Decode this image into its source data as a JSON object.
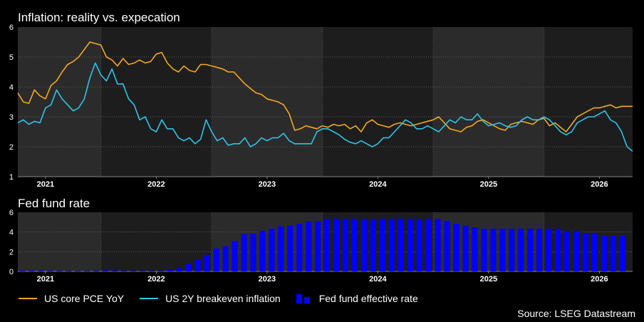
{
  "chart_data": [
    {
      "type": "line",
      "title": "Inflation: reality vs. expecation",
      "ylim": [
        1,
        6
      ],
      "yticks": [
        "1",
        "2",
        "3",
        "4",
        "5",
        "6"
      ],
      "xlim": [
        2020.75,
        2026.3
      ],
      "xticks": [
        {
          "label": "2021",
          "x": 2021
        },
        {
          "label": "2022",
          "x": 2022
        },
        {
          "label": "2023",
          "x": 2023
        },
        {
          "label": "2024",
          "x": 2024
        },
        {
          "label": "2025",
          "x": 2025
        },
        {
          "label": "2026",
          "x": 2026
        }
      ],
      "grid": true,
      "series": [
        {
          "name": "US core PCE YoY",
          "color": "#f5a623",
          "x": [
            2020.75,
            2020.8,
            2020.85,
            2020.9,
            2020.95,
            2021.0,
            2021.05,
            2021.1,
            2021.15,
            2021.2,
            2021.25,
            2021.3,
            2021.35,
            2021.4,
            2021.45,
            2021.5,
            2021.55,
            2021.6,
            2021.65,
            2021.7,
            2021.75,
            2021.8,
            2021.85,
            2021.9,
            2021.95,
            2022.0,
            2022.05,
            2022.1,
            2022.15,
            2022.2,
            2022.25,
            2022.3,
            2022.35,
            2022.4,
            2022.45,
            2022.5,
            2022.55,
            2022.6,
            2022.65,
            2022.7,
            2022.75,
            2022.8,
            2022.85,
            2022.9,
            2022.95,
            2023.0,
            2023.05,
            2023.1,
            2023.15,
            2023.2,
            2023.25,
            2023.3,
            2023.35,
            2023.4,
            2023.45,
            2023.5,
            2023.55,
            2023.6,
            2023.65,
            2023.7,
            2023.75,
            2023.8,
            2023.85,
            2023.9,
            2023.95,
            2024.0,
            2024.05,
            2024.1,
            2024.15,
            2024.2,
            2024.25,
            2024.3,
            2024.35,
            2024.4,
            2024.45,
            2024.5,
            2024.55,
            2024.6,
            2024.65,
            2024.7,
            2024.75,
            2024.8,
            2024.85,
            2024.9,
            2024.95,
            2025.0,
            2025.05,
            2025.1,
            2025.15,
            2025.2,
            2025.25,
            2025.3,
            2025.35,
            2025.4,
            2025.45,
            2025.5,
            2025.55,
            2025.6,
            2025.65,
            2025.7,
            2025.75,
            2025.8,
            2025.85,
            2025.9,
            2025.95,
            2026.0,
            2026.05,
            2026.1,
            2026.15,
            2026.2,
            2026.25,
            2026.3
          ],
          "values": [
            3.8,
            3.5,
            3.45,
            3.9,
            3.7,
            3.6,
            4.05,
            4.2,
            4.5,
            4.75,
            4.85,
            5.0,
            5.25,
            5.5,
            5.45,
            5.4,
            5.0,
            4.9,
            4.7,
            4.95,
            4.75,
            4.8,
            4.9,
            4.8,
            4.85,
            5.1,
            5.15,
            4.8,
            4.6,
            4.5,
            4.7,
            4.55,
            4.5,
            4.75,
            4.75,
            4.7,
            4.65,
            4.6,
            4.5,
            4.5,
            4.3,
            4.1,
            3.95,
            3.8,
            3.75,
            3.6,
            3.55,
            3.5,
            3.4,
            3.1,
            2.55,
            2.6,
            2.7,
            2.65,
            2.6,
            2.7,
            2.65,
            2.75,
            2.7,
            2.75,
            2.6,
            2.7,
            2.5,
            2.8,
            2.9,
            2.75,
            2.7,
            2.65,
            2.75,
            2.8,
            2.75,
            2.7,
            2.75,
            2.8,
            2.85,
            2.9,
            3.0,
            2.8,
            2.6,
            2.55,
            2.5,
            2.65,
            2.7,
            2.85,
            2.9,
            2.8,
            2.7,
            2.6,
            2.55,
            2.75,
            2.8,
            2.85,
            2.8,
            2.75,
            2.9,
            2.95,
            2.7,
            2.8,
            2.65,
            2.5,
            2.75,
            3.0,
            3.1,
            3.2,
            3.3,
            3.3,
            3.35,
            3.4,
            3.3,
            3.35,
            3.35,
            3.35
          ]
        },
        {
          "name": "US 2Y breakeven inflation",
          "color": "#2ec4e8",
          "x": [
            2020.75,
            2020.8,
            2020.85,
            2020.9,
            2020.95,
            2021.0,
            2021.05,
            2021.1,
            2021.15,
            2021.2,
            2021.25,
            2021.3,
            2021.35,
            2021.4,
            2021.45,
            2021.5,
            2021.55,
            2021.6,
            2021.65,
            2021.7,
            2021.75,
            2021.8,
            2021.85,
            2021.9,
            2021.95,
            2022.0,
            2022.05,
            2022.1,
            2022.15,
            2022.2,
            2022.25,
            2022.3,
            2022.35,
            2022.4,
            2022.45,
            2022.5,
            2022.55,
            2022.6,
            2022.65,
            2022.7,
            2022.75,
            2022.8,
            2022.85,
            2022.9,
            2022.95,
            2023.0,
            2023.05,
            2023.1,
            2023.15,
            2023.2,
            2023.25,
            2023.3,
            2023.35,
            2023.4,
            2023.45,
            2023.5,
            2023.55,
            2023.6,
            2023.65,
            2023.7,
            2023.75,
            2023.8,
            2023.85,
            2023.9,
            2023.95,
            2024.0,
            2024.05,
            2024.1,
            2024.15,
            2024.2,
            2024.25,
            2024.3,
            2024.35,
            2024.4,
            2024.45,
            2024.5,
            2024.55,
            2024.6,
            2024.65,
            2024.7,
            2024.75,
            2024.8,
            2024.85,
            2024.9,
            2024.95,
            2025.0,
            2025.05,
            2025.1,
            2025.15,
            2025.2,
            2025.25,
            2025.3,
            2025.35,
            2025.4,
            2025.45,
            2025.5,
            2025.55,
            2025.6,
            2025.65,
            2025.7,
            2025.75,
            2025.8,
            2025.85,
            2025.9,
            2025.95,
            2026.0,
            2026.05,
            2026.1,
            2026.15,
            2026.2,
            2026.25,
            2026.3
          ],
          "values": [
            2.8,
            2.9,
            2.75,
            2.85,
            2.8,
            3.3,
            3.4,
            3.9,
            3.6,
            3.4,
            3.2,
            3.3,
            3.6,
            4.3,
            4.8,
            4.4,
            4.2,
            4.6,
            4.1,
            4.1,
            3.6,
            3.4,
            2.9,
            3.0,
            2.6,
            2.5,
            2.9,
            2.6,
            2.6,
            2.3,
            2.2,
            2.3,
            2.1,
            2.25,
            2.9,
            2.5,
            2.2,
            2.3,
            2.05,
            2.1,
            2.1,
            2.3,
            2.0,
            2.1,
            2.3,
            2.2,
            2.3,
            2.3,
            2.45,
            2.2,
            2.1,
            2.1,
            2.1,
            2.1,
            2.5,
            2.6,
            2.6,
            2.5,
            2.4,
            2.25,
            2.15,
            2.1,
            2.2,
            2.1,
            2.0,
            2.1,
            2.3,
            2.3,
            2.5,
            2.7,
            2.9,
            2.8,
            2.6,
            2.6,
            2.7,
            2.6,
            2.5,
            2.7,
            2.9,
            2.8,
            3.0,
            2.9,
            2.9,
            3.1,
            2.85,
            2.7,
            2.75,
            2.8,
            2.7,
            2.65,
            2.7,
            2.9,
            3.0,
            2.9,
            2.9,
            3.0,
            2.9,
            2.7,
            2.5,
            2.4,
            2.5,
            2.8,
            2.9,
            3.0,
            3.0,
            3.1,
            3.2,
            2.9,
            2.8,
            2.5,
            2.0,
            1.85
          ]
        }
      ]
    },
    {
      "type": "bar",
      "title": "Fed fund rate",
      "ylim": [
        0,
        6
      ],
      "yticks": [
        "0",
        "2",
        "4",
        "6"
      ],
      "xlim": [
        2020.75,
        2026.3
      ],
      "xticks": [
        {
          "label": "2021",
          "x": 2021
        },
        {
          "label": "2022",
          "x": 2022
        },
        {
          "label": "2023",
          "x": 2023
        },
        {
          "label": "2024",
          "x": 2024
        },
        {
          "label": "2025",
          "x": 2025
        },
        {
          "label": "2026",
          "x": 2026
        }
      ],
      "grid": true,
      "series": [
        {
          "name": "Fed fund effective rate",
          "color": "#0000ff",
          "x": [
            2020.792,
            2020.875,
            2020.958,
            2021.042,
            2021.125,
            2021.208,
            2021.292,
            2021.375,
            2021.458,
            2021.542,
            2021.625,
            2021.708,
            2021.792,
            2021.875,
            2021.958,
            2022.042,
            2022.125,
            2022.208,
            2022.292,
            2022.375,
            2022.458,
            2022.542,
            2022.625,
            2022.708,
            2022.792,
            2022.875,
            2022.958,
            2023.042,
            2023.125,
            2023.208,
            2023.292,
            2023.375,
            2023.458,
            2023.542,
            2023.625,
            2023.708,
            2023.792,
            2023.875,
            2023.958,
            2024.042,
            2024.125,
            2024.208,
            2024.292,
            2024.375,
            2024.458,
            2024.542,
            2024.625,
            2024.708,
            2024.792,
            2024.875,
            2024.958,
            2025.042,
            2025.125,
            2025.208,
            2025.292,
            2025.375,
            2025.458,
            2025.542,
            2025.625,
            2025.708,
            2025.792,
            2025.875,
            2025.958,
            2026.042,
            2026.125,
            2026.208
          ],
          "values": [
            0.09,
            0.09,
            0.09,
            0.09,
            0.08,
            0.07,
            0.07,
            0.06,
            0.08,
            0.1,
            0.09,
            0.08,
            0.08,
            0.08,
            0.08,
            0.08,
            0.2,
            0.33,
            0.77,
            1.21,
            1.68,
            2.33,
            2.56,
            3.08,
            3.78,
            3.83,
            4.1,
            4.33,
            4.57,
            4.65,
            4.83,
            5.06,
            5.08,
            5.33,
            5.33,
            5.33,
            5.33,
            5.33,
            5.33,
            5.33,
            5.33,
            5.33,
            5.33,
            5.33,
            5.33,
            5.33,
            5.13,
            4.83,
            4.64,
            4.48,
            4.33,
            4.33,
            4.33,
            4.33,
            4.33,
            4.33,
            4.33,
            4.33,
            4.33,
            4.09,
            4.09,
            3.88,
            3.88,
            3.64,
            3.64,
            3.64
          ]
        }
      ]
    }
  ],
  "legend": [
    {
      "label": "US core PCE YoY",
      "color": "#f5a623"
    },
    {
      "label": "US 2Y breakeven inflation",
      "color": "#2ec4e8"
    },
    {
      "label": "Fed fund effective rate",
      "color": "#0000ff"
    }
  ],
  "source": "Source: LSEG Datastream"
}
